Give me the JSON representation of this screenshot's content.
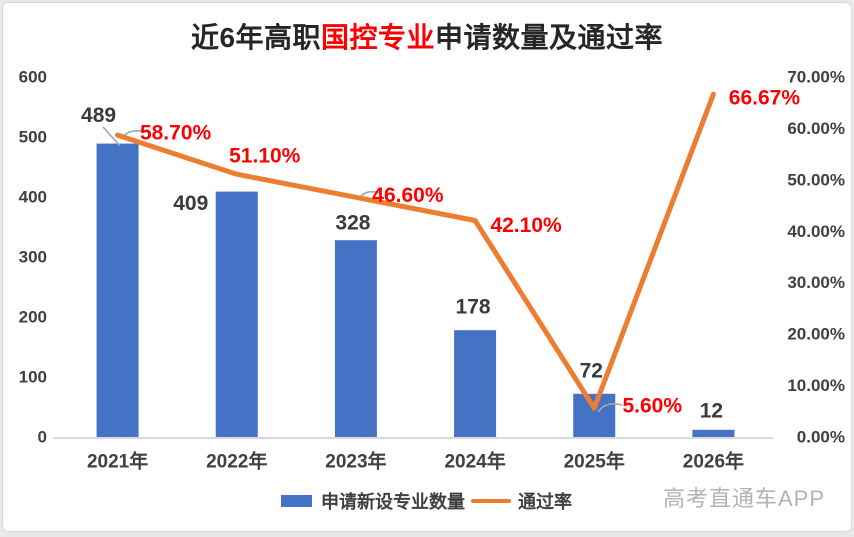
{
  "title": {
    "pre": "近6年高职",
    "highlight": "国控专业",
    "post": "申请数量及通过率"
  },
  "chart_data": {
    "type": "combo",
    "categories": [
      "2021年",
      "2022年",
      "2023年",
      "2024年",
      "2025年",
      "2026年"
    ],
    "series": [
      {
        "name": "申请新设专业数量",
        "type": "bar",
        "color": "#4472C4",
        "values": [
          489,
          409,
          328,
          178,
          72,
          12
        ],
        "labels": [
          "489",
          "409",
          "328",
          "178",
          "72",
          "12"
        ]
      },
      {
        "name": "通过率",
        "type": "line",
        "color": "#ED7D31",
        "values": [
          58.7,
          51.1,
          46.6,
          42.1,
          5.6,
          66.67
        ],
        "labels": [
          "58.70%",
          "51.10%",
          "46.60%",
          "42.10%",
          "5.60%",
          "66.67%"
        ]
      }
    ],
    "left_axis": {
      "min": 0,
      "max": 600,
      "ticks": [
        "600",
        "500",
        "400",
        "300",
        "200",
        "100",
        "0"
      ]
    },
    "right_axis": {
      "min": 0,
      "max": 70,
      "ticks": [
        "70.00%",
        "60.00%",
        "50.00%",
        "40.00%",
        "30.00%",
        "20.00%",
        "10.00%",
        "0.00%"
      ]
    },
    "legend_position": "bottom",
    "grid": "off"
  },
  "legend": {
    "bar_label": "申请新设专业数量",
    "line_label": "通过率"
  },
  "watermark": "高考直通车APP",
  "colors": {
    "bar": "#4472C4",
    "line": "#ED7D31",
    "value_label": "#3a3a3a",
    "pct_label": "#ff0000",
    "axis_text": "#404040",
    "axis_line": "#d9d9d9",
    "leader": "#a6a6a6",
    "title": "#262626",
    "title_highlight": "#ff0000",
    "watermark": "#b3b3b3"
  }
}
